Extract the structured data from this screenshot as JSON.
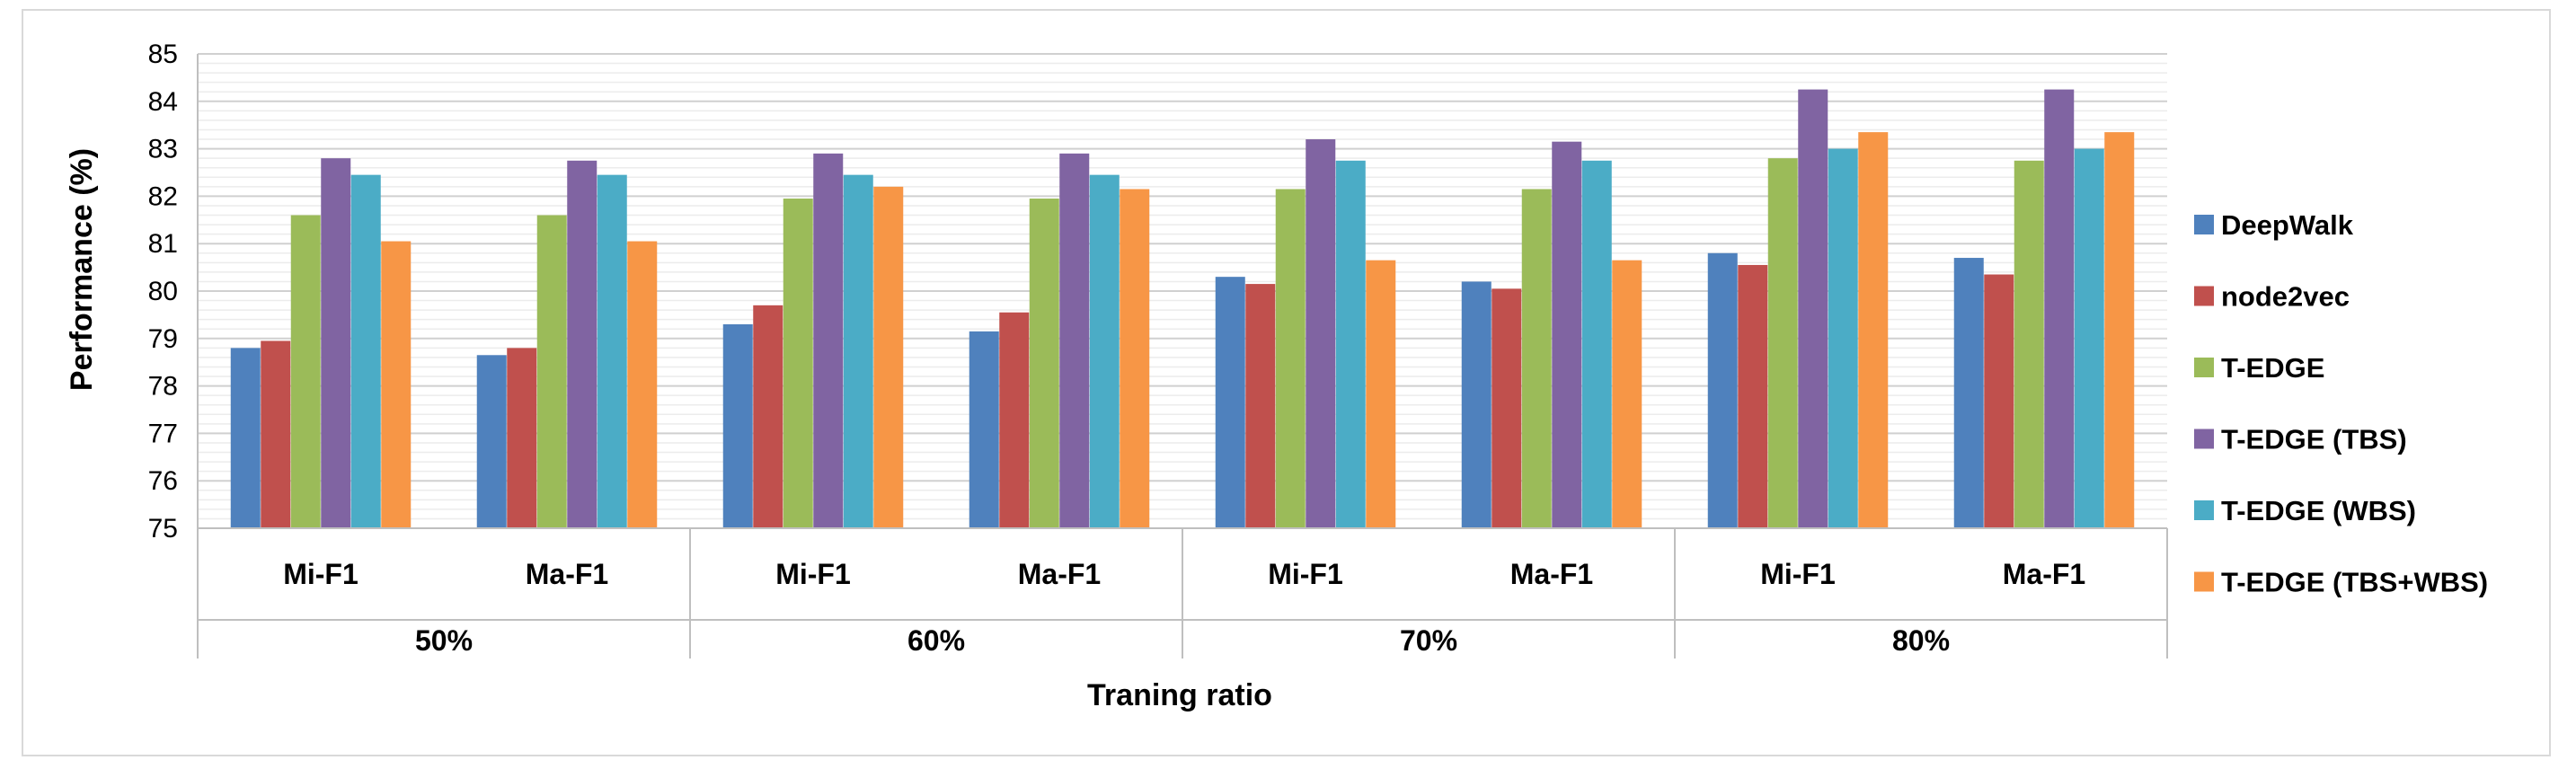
{
  "chart_data": {
    "type": "bar",
    "title": "",
    "xlabel": "Traning ratio",
    "ylabel": "Performance (%)",
    "ylim": [
      75,
      85
    ],
    "yticks": [
      75,
      76,
      77,
      78,
      79,
      80,
      81,
      82,
      83,
      84,
      85
    ],
    "grid": true,
    "legend_position": "right",
    "groups": [
      "50%",
      "60%",
      "70%",
      "80%"
    ],
    "categories": [
      "Mi-F1",
      "Ma-F1",
      "Mi-F1",
      "Ma-F1",
      "Mi-F1",
      "Ma-F1",
      "Mi-F1",
      "Ma-F1"
    ],
    "series": [
      {
        "name": "DeepWalk",
        "color": "#4f81bd",
        "values": [
          78.8,
          78.65,
          79.3,
          79.15,
          80.3,
          80.2,
          80.8,
          80.7
        ]
      },
      {
        "name": "node2vec",
        "color": "#c0504d",
        "values": [
          78.95,
          78.8,
          79.7,
          79.55,
          80.15,
          80.05,
          80.55,
          80.35
        ]
      },
      {
        "name": "T-EDGE",
        "color": "#9bbb59",
        "values": [
          81.6,
          81.6,
          81.95,
          81.95,
          82.15,
          82.15,
          82.8,
          82.75
        ]
      },
      {
        "name": "T-EDGE (TBS)",
        "color": "#8064a2",
        "values": [
          82.8,
          82.75,
          82.9,
          82.9,
          83.2,
          83.15,
          84.25,
          84.25
        ]
      },
      {
        "name": "T-EDGE (WBS)",
        "color": "#4bacc6",
        "values": [
          82.45,
          82.45,
          82.45,
          82.45,
          82.75,
          82.75,
          83.0,
          83.0
        ]
      },
      {
        "name": "T-EDGE (TBS+WBS)",
        "color": "#f79646",
        "values": [
          81.05,
          81.05,
          82.2,
          82.15,
          80.65,
          80.65,
          83.35,
          83.35
        ]
      }
    ]
  }
}
